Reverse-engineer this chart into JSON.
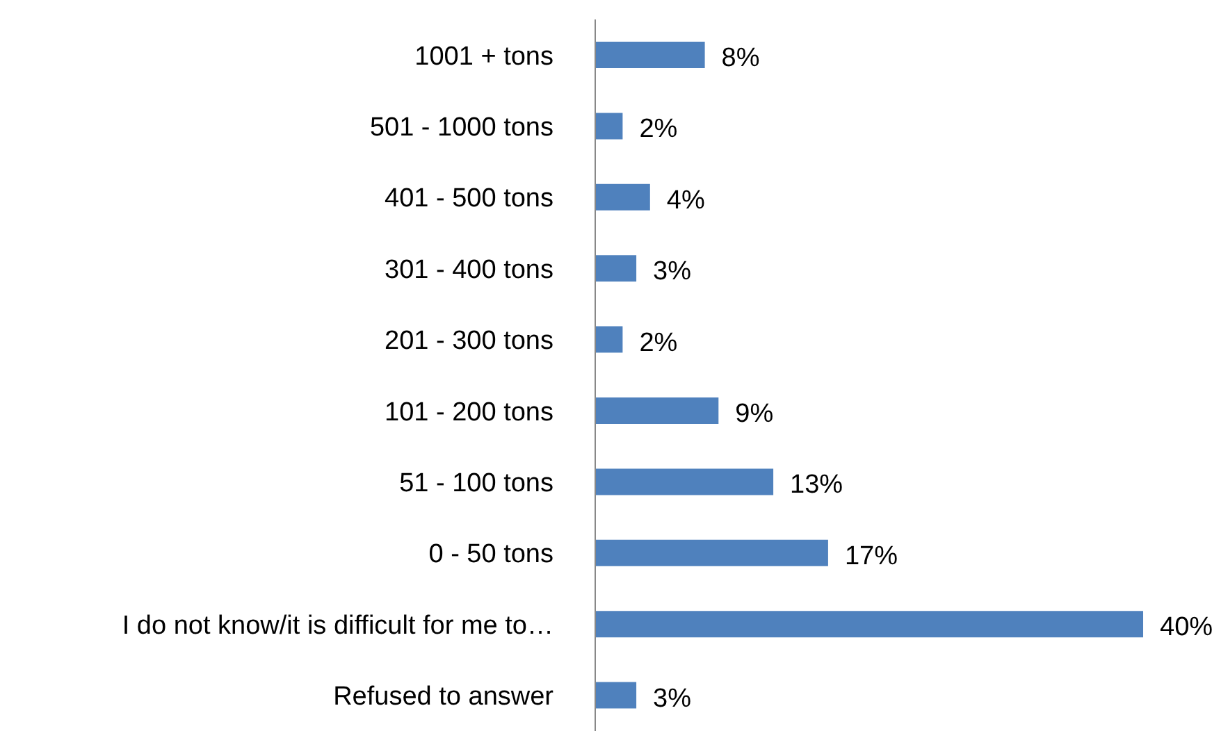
{
  "chart_data": {
    "type": "bar",
    "orientation": "horizontal",
    "categories": [
      "1001 + tons",
      "501 - 1000 tons",
      "401 - 500 tons",
      "301 - 400 tons",
      "201 - 300 tons",
      "101 - 200 tons",
      "51 - 100 tons",
      "0 - 50 tons",
      "I do not know/it is difficult for me to…",
      "Refused to answer"
    ],
    "values": [
      8,
      2,
      4,
      3,
      2,
      9,
      13,
      17,
      40,
      3
    ],
    "value_labels": [
      "8%",
      "2%",
      "4%",
      "3%",
      "2%",
      "9%",
      "13%",
      "17%",
      "40%",
      "3%"
    ],
    "color": "#4f81bd"
  }
}
